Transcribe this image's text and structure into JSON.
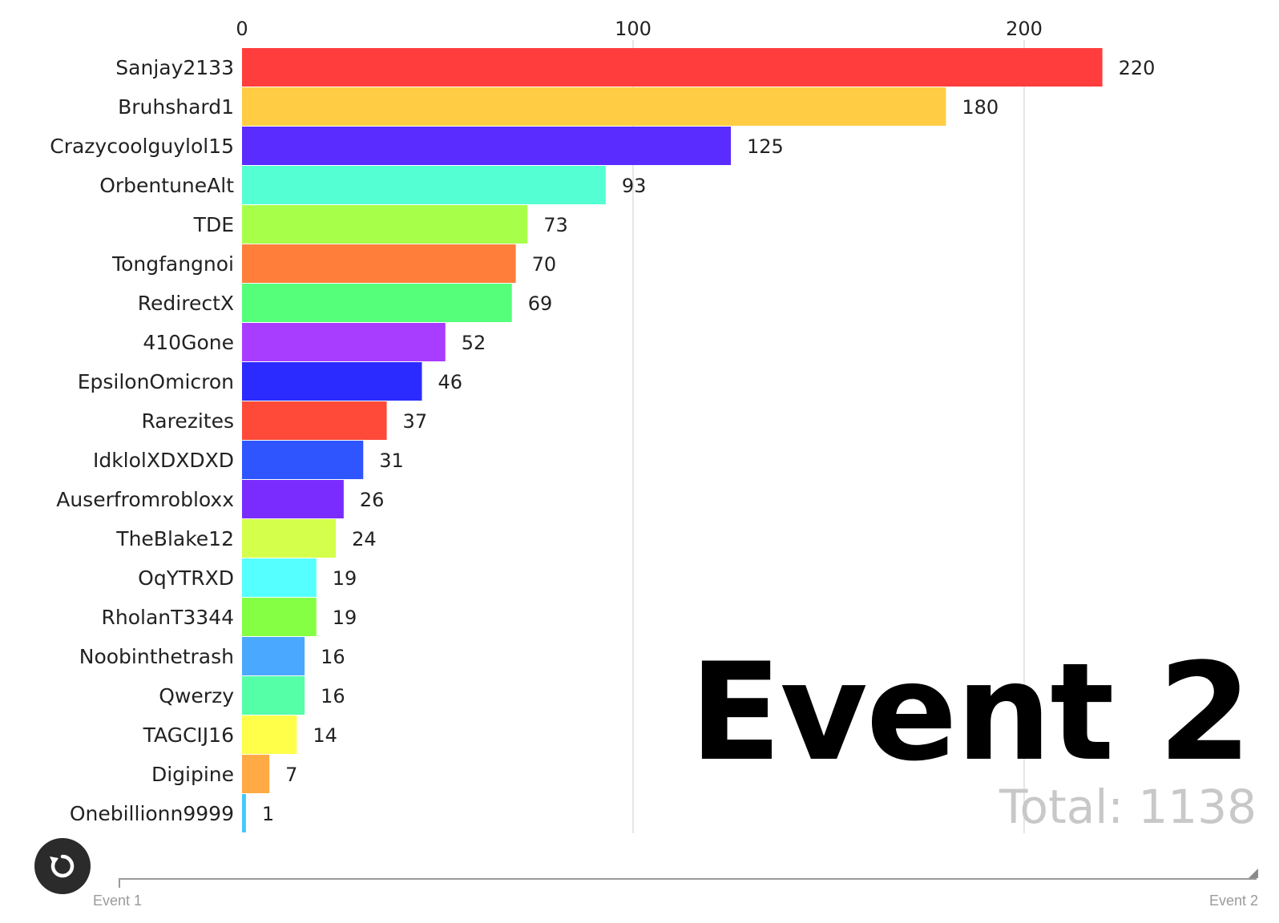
{
  "chart_data": {
    "type": "bar",
    "orientation": "horizontal",
    "categories": [
      "Sanjay2133",
      "Bruhshard1",
      "Crazycoolguylol15",
      "OrbentuneAlt",
      "TDE",
      "Tongfangnoi",
      "RedirectX",
      "410Gone",
      "EpsilonOmicron",
      "Rarezites",
      "IdklolXDXDXD",
      "Auserfromrobloxx",
      "TheBlake12",
      "OqYTRXD",
      "RholanT3344",
      "Noobinthetrash",
      "Qwerzy",
      "TAGCIJ16",
      "Digipine",
      "Onebillionn9999"
    ],
    "values": [
      220,
      180,
      125,
      93,
      73,
      70,
      69,
      52,
      46,
      37,
      31,
      26,
      24,
      19,
      19,
      16,
      16,
      14,
      7,
      1
    ],
    "colors": [
      "#ff3d3d",
      "#ffcc44",
      "#5b2cff",
      "#55ffd4",
      "#a8ff4a",
      "#ff7f3a",
      "#55ff7a",
      "#a83dff",
      "#2b2bff",
      "#ff4a3a",
      "#2f55ff",
      "#7a2cff",
      "#d4ff4a",
      "#55ffff",
      "#84ff44",
      "#4aa8ff",
      "#55ffa8",
      "#ffff4a",
      "#ffaa44",
      "#44c8ff"
    ],
    "xticks": [
      0,
      100,
      200
    ],
    "xlim": [
      0,
      265
    ],
    "grid": true,
    "title": "",
    "xlabel": "",
    "ylabel": ""
  },
  "event_title": "Event 2",
  "total_text": "Total: 1138",
  "timeline": {
    "start_label": "Event 1",
    "end_label": "Event 2",
    "progress": 1.0
  },
  "icons": {
    "replay": "replay-icon"
  }
}
